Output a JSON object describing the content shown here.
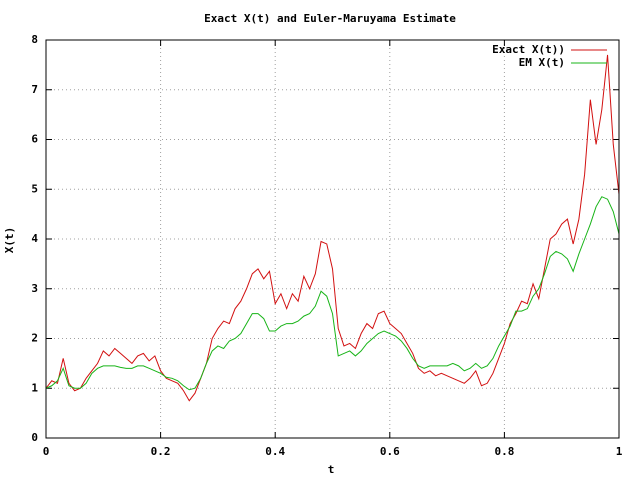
{
  "chart_data": {
    "type": "line",
    "title": "Exact X(t) and Euler-Maruyama Estimate",
    "xlabel": "t",
    "ylabel": "X(t)",
    "x": [
      0,
      0.01,
      0.02,
      0.03,
      0.04,
      0.05,
      0.06,
      0.07,
      0.08,
      0.09,
      0.1,
      0.11,
      0.12,
      0.13,
      0.14,
      0.15,
      0.16,
      0.17,
      0.18,
      0.19,
      0.2,
      0.21,
      0.22,
      0.23,
      0.24,
      0.25,
      0.26,
      0.27,
      0.28,
      0.29,
      0.3,
      0.31,
      0.32,
      0.33,
      0.34,
      0.35,
      0.36,
      0.37,
      0.38,
      0.39,
      0.4,
      0.41,
      0.42,
      0.43,
      0.44,
      0.45,
      0.46,
      0.47,
      0.48,
      0.49,
      0.5,
      0.51,
      0.52,
      0.53,
      0.54,
      0.55,
      0.56,
      0.57,
      0.58,
      0.59,
      0.6,
      0.61,
      0.62,
      0.63,
      0.64,
      0.65,
      0.66,
      0.67,
      0.68,
      0.69,
      0.7,
      0.71,
      0.72,
      0.73,
      0.74,
      0.75,
      0.76,
      0.77,
      0.78,
      0.79,
      0.8,
      0.81,
      0.82,
      0.83,
      0.84,
      0.85,
      0.86,
      0.87,
      0.88,
      0.89,
      0.9,
      0.91,
      0.92,
      0.93,
      0.94,
      0.95,
      0.96,
      0.97,
      0.98,
      0.99,
      1
    ],
    "series": [
      {
        "name": "Exact X(t))",
        "color": "#d21010",
        "values": [
          1.0,
          1.15,
          1.1,
          1.6,
          1.1,
          0.95,
          1.0,
          1.2,
          1.35,
          1.5,
          1.75,
          1.65,
          1.8,
          1.7,
          1.6,
          1.5,
          1.65,
          1.7,
          1.55,
          1.65,
          1.35,
          1.2,
          1.15,
          1.1,
          0.95,
          0.75,
          0.9,
          1.2,
          1.5,
          2.0,
          2.2,
          2.35,
          2.3,
          2.6,
          2.75,
          3.0,
          3.3,
          3.4,
          3.2,
          3.35,
          2.7,
          2.9,
          2.6,
          2.9,
          2.75,
          3.25,
          3.0,
          3.3,
          3.95,
          3.9,
          3.4,
          2.2,
          1.85,
          1.9,
          1.8,
          2.1,
          2.3,
          2.2,
          2.5,
          2.55,
          2.3,
          2.2,
          2.1,
          1.9,
          1.7,
          1.4,
          1.3,
          1.35,
          1.25,
          1.3,
          1.25,
          1.2,
          1.15,
          1.1,
          1.2,
          1.35,
          1.05,
          1.1,
          1.3,
          1.6,
          1.9,
          2.3,
          2.5,
          2.75,
          2.7,
          3.1,
          2.8,
          3.4,
          4.0,
          4.1,
          4.3,
          4.4,
          3.9,
          4.4,
          5.3,
          6.8,
          5.9,
          6.6,
          7.7,
          5.9,
          4.9
        ]
      },
      {
        "name": "EM X(t)",
        "color": "#18b418",
        "values": [
          1.0,
          1.05,
          1.15,
          1.4,
          1.05,
          1.0,
          1.0,
          1.1,
          1.3,
          1.4,
          1.45,
          1.45,
          1.45,
          1.42,
          1.4,
          1.4,
          1.45,
          1.45,
          1.4,
          1.35,
          1.3,
          1.22,
          1.2,
          1.15,
          1.05,
          0.97,
          1.0,
          1.2,
          1.5,
          1.75,
          1.85,
          1.8,
          1.95,
          2.0,
          2.1,
          2.3,
          2.5,
          2.5,
          2.4,
          2.15,
          2.15,
          2.25,
          2.3,
          2.3,
          2.35,
          2.45,
          2.5,
          2.65,
          2.95,
          2.85,
          2.5,
          1.65,
          1.7,
          1.75,
          1.65,
          1.75,
          1.9,
          2.0,
          2.1,
          2.15,
          2.1,
          2.05,
          1.95,
          1.8,
          1.6,
          1.45,
          1.4,
          1.45,
          1.45,
          1.45,
          1.45,
          1.5,
          1.45,
          1.35,
          1.4,
          1.5,
          1.4,
          1.45,
          1.6,
          1.85,
          2.05,
          2.25,
          2.55,
          2.55,
          2.6,
          2.85,
          3.0,
          3.3,
          3.65,
          3.75,
          3.7,
          3.6,
          3.35,
          3.7,
          4.0,
          4.3,
          4.65,
          4.85,
          4.8,
          4.55,
          4.1
        ]
      }
    ],
    "xlim": [
      0,
      1
    ],
    "xticks": [
      0,
      0.2,
      0.4,
      0.6,
      0.8,
      1
    ],
    "ylim": [
      0,
      8
    ],
    "yticks": [
      0,
      1,
      2,
      3,
      4,
      5,
      6,
      7,
      8
    ],
    "grid": true,
    "legend": "top-right"
  }
}
